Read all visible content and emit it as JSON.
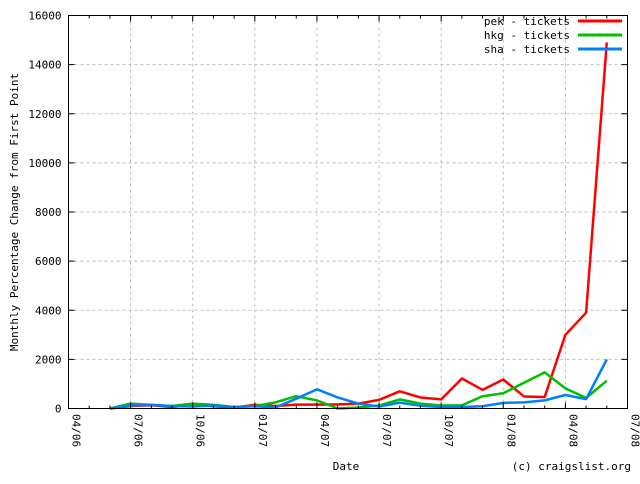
{
  "page": {
    "background": "#ffffff"
  },
  "footer": {
    "credit": "(c) craigslist.org"
  },
  "chart_data": {
    "type": "line",
    "title": "",
    "xlabel": "Date",
    "ylabel": "Monthly Percentage Change from First Point",
    "grid": {
      "style": "dashed",
      "color": "#bdbdbd"
    },
    "legend": {
      "position": "top-right-inside"
    },
    "x_axis": {
      "months_total": 27,
      "tick_labels": [
        "04/06",
        "07/06",
        "10/06",
        "01/07",
        "04/07",
        "07/07",
        "10/07",
        "01/08",
        "04/08",
        "07/08"
      ],
      "tick_month_positions": [
        0,
        3,
        6,
        9,
        12,
        15,
        18,
        21,
        24,
        27
      ],
      "minor_tick_every_month": true
    },
    "y_axis": {
      "min": 0,
      "max": 16000,
      "tick_step": 2000,
      "tick_labels": [
        "0",
        "2000",
        "4000",
        "6000",
        "8000",
        "10000",
        "12000",
        "14000",
        "16000"
      ]
    },
    "start_month_index": 2,
    "point_labels": [
      "06/06",
      "07/06",
      "08/06",
      "09/06",
      "10/06",
      "11/06",
      "12/06",
      "01/07",
      "02/07",
      "03/07",
      "04/07",
      "05/07",
      "06/07",
      "07/07",
      "08/07",
      "09/07",
      "10/07",
      "11/07",
      "12/07",
      "01/08",
      "02/08",
      "03/08",
      "04/08",
      "05/08",
      "06/08"
    ],
    "series": [
      {
        "id": "pek",
        "label": "pek - tickets",
        "color": "#ff0000",
        "values": [
          0,
          100,
          130,
          60,
          160,
          90,
          40,
          150,
          100,
          160,
          160,
          170,
          200,
          350,
          700,
          450,
          370,
          1220,
          760,
          1180,
          490,
          470,
          3000,
          3900,
          14900
        ]
      },
      {
        "id": "hkg",
        "label": "hkg - tickets",
        "color": "#00c000",
        "values": [
          0,
          200,
          150,
          100,
          200,
          150,
          60,
          100,
          250,
          500,
          330,
          0,
          40,
          120,
          370,
          200,
          120,
          130,
          500,
          620,
          1050,
          1470,
          820,
          430,
          1130
        ]
      },
      {
        "id": "sha",
        "label": "sha - tickets",
        "color": "#0080ff",
        "values": [
          0,
          130,
          150,
          100,
          80,
          120,
          60,
          90,
          40,
          400,
          780,
          450,
          200,
          80,
          240,
          110,
          60,
          60,
          90,
          230,
          250,
          330,
          550,
          380,
          2000
        ]
      }
    ]
  }
}
